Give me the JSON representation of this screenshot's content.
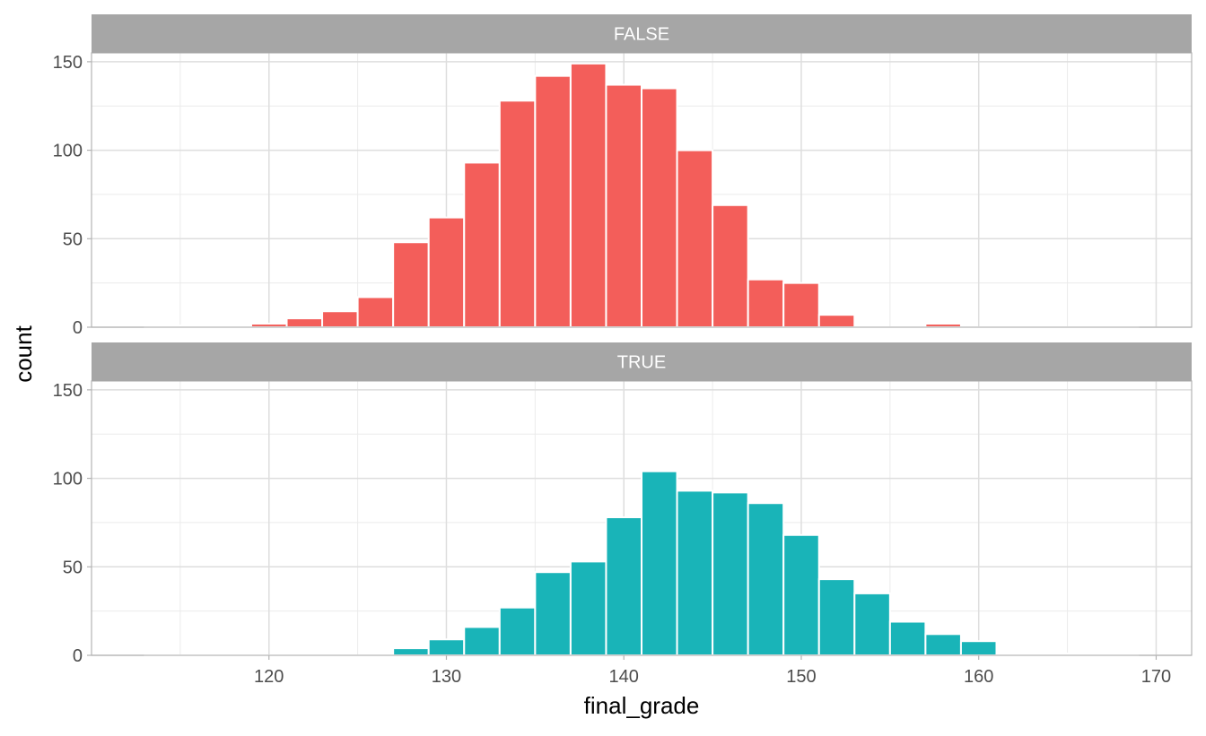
{
  "chart_data": {
    "type": "bar",
    "xlabel": "final_grade",
    "ylabel": "count",
    "xlim": [
      110,
      172
    ],
    "ylim": [
      0,
      155
    ],
    "x_ticks": [
      120,
      130,
      140,
      150,
      160,
      170
    ],
    "y_ticks": [
      0,
      50,
      100,
      150
    ],
    "bin_width": 2,
    "bin_starts": [
      113,
      115,
      117,
      119,
      121,
      123,
      125,
      127,
      129,
      131,
      133,
      135,
      137,
      139,
      141,
      143,
      145,
      147,
      149,
      151,
      153,
      155,
      157,
      159,
      161,
      163,
      165,
      167
    ],
    "grid": true,
    "legend": "none",
    "panels": [
      {
        "strip_label": "FALSE",
        "color": "#F35E5A",
        "values": [
          0,
          1,
          0,
          2,
          5,
          9,
          17,
          48,
          62,
          93,
          128,
          142,
          149,
          137,
          135,
          100,
          69,
          27,
          25,
          7,
          0,
          0,
          2,
          0,
          0,
          0,
          0,
          0
        ]
      },
      {
        "strip_label": "TRUE",
        "color": "#19B4B8",
        "values": [
          0,
          0,
          0,
          0,
          0,
          0,
          0,
          4,
          9,
          16,
          27,
          47,
          53,
          78,
          104,
          93,
          92,
          86,
          68,
          43,
          35,
          19,
          12,
          8,
          1,
          1,
          0,
          0
        ]
      }
    ]
  }
}
